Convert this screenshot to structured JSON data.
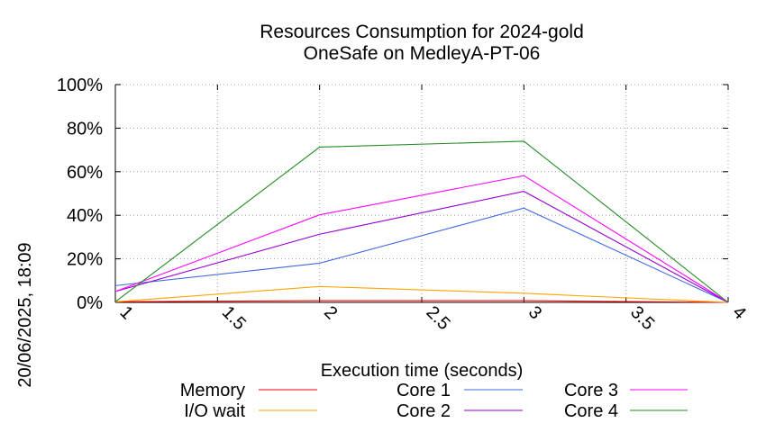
{
  "side_timestamp": "20/06/2025, 18:09",
  "chart_data": {
    "type": "line",
    "title": "Resources Consumption for 2024-gold",
    "subtitle": "OneSafe on MedleyA-PT-06",
    "xlabel": "Execution time (seconds)",
    "ylabel": "",
    "xlim": [
      1,
      4
    ],
    "ylim": [
      0,
      100
    ],
    "grid": true,
    "legend_position": "bottom",
    "x_ticks": [
      {
        "value": 1,
        "label": "1"
      },
      {
        "value": 1.5,
        "label": "1.5"
      },
      {
        "value": 2,
        "label": "2"
      },
      {
        "value": 2.5,
        "label": "2.5"
      },
      {
        "value": 3,
        "label": "3"
      },
      {
        "value": 3.5,
        "label": "3.5"
      },
      {
        "value": 4,
        "label": "4"
      }
    ],
    "y_ticks": [
      {
        "value": 0,
        "label": "0%"
      },
      {
        "value": 20,
        "label": "20%"
      },
      {
        "value": 40,
        "label": "40%"
      },
      {
        "value": 60,
        "label": "60%"
      },
      {
        "value": 80,
        "label": "80%"
      },
      {
        "value": 100,
        "label": "100%"
      }
    ],
    "series": [
      {
        "name": "Memory",
        "color": "#ff0000",
        "x": [
          1,
          2,
          3,
          4
        ],
        "values": [
          0.3,
          0.8,
          0.8,
          0
        ]
      },
      {
        "name": "I/O wait",
        "color": "#ffa500",
        "x": [
          1,
          2,
          3,
          4
        ],
        "values": [
          0.3,
          7.3,
          4.2,
          0
        ]
      },
      {
        "name": "Core 1",
        "color": "#4169e1",
        "x": [
          1,
          2,
          3,
          4
        ],
        "values": [
          7.7,
          18.0,
          43.3,
          0
        ]
      },
      {
        "name": "Core 2",
        "color": "#9400d3",
        "x": [
          1,
          2,
          3,
          4
        ],
        "values": [
          5.0,
          31.3,
          51.0,
          0
        ]
      },
      {
        "name": "Core 3",
        "color": "#ff00ff",
        "x": [
          1,
          2,
          3,
          4
        ],
        "values": [
          5.0,
          40.2,
          58.2,
          0
        ]
      },
      {
        "name": "Core 4",
        "color": "#228b22",
        "x": [
          1,
          2,
          3,
          4
        ],
        "values": [
          0.3,
          71.3,
          74.0,
          0
        ]
      }
    ]
  }
}
